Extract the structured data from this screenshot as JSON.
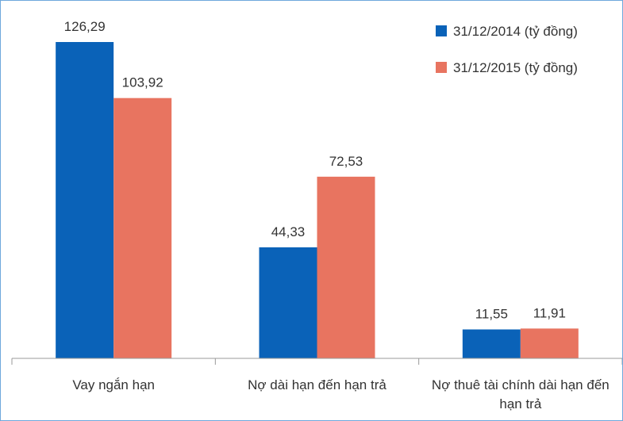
{
  "chart_data": {
    "type": "bar",
    "categories": [
      "Vay ngắn hạn",
      "Nợ dài hạn đến hạn trả",
      "Nợ thuê tài chính dài hạn đến hạn trả"
    ],
    "series": [
      {
        "name": "31/12/2014 (tỷ đồng)",
        "color": "#0a62b8",
        "values": [
          126.29,
          44.33,
          11.55
        ],
        "value_labels": [
          "126,29",
          "44,33",
          "11,55"
        ]
      },
      {
        "name": "31/12/2015 (tỷ đồng)",
        "color": "#e87460",
        "values": [
          103.92,
          72.53,
          11.91
        ],
        "value_labels": [
          "103,92",
          "72,53",
          "11,91"
        ]
      }
    ],
    "legend": "top-right"
  }
}
